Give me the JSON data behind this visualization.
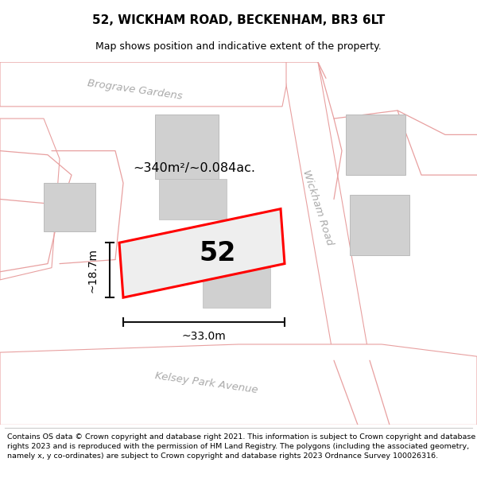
{
  "title": "52, WICKHAM ROAD, BECKENHAM, BR3 6LT",
  "subtitle": "Map shows position and indicative extent of the property.",
  "footer": "Contains OS data © Crown copyright and database right 2021. This information is subject to Crown copyright and database rights 2023 and is reproduced with the permission of HM Land Registry. The polygons (including the associated geometry, namely x, y co-ordinates) are subject to Crown copyright and database rights 2023 Ordnance Survey 100026316.",
  "bg_color": "#f5f5f5",
  "road_color": "#ffffff",
  "road_edge": "#e8a0a0",
  "building_fill": "#d0d0d0",
  "building_edge": "#bbbbbb",
  "highlight_fill": "#eeeeee",
  "highlight_edge": "#ff0000",
  "dim_color": "#111111",
  "road_label_color": "#aaaaaa",
  "label_52": "52",
  "area_label": "~340m²/~0.084ac.",
  "width_label": "~33.0m",
  "height_label": "~18.7m",
  "road_label_wickham": "Wickham Road",
  "road_label_brograve": "Brograve Gardens",
  "road_label_kelsey": "Kelsey Park Avenue",
  "title_fontsize": 11,
  "subtitle_fontsize": 9,
  "footer_fontsize": 6.8
}
